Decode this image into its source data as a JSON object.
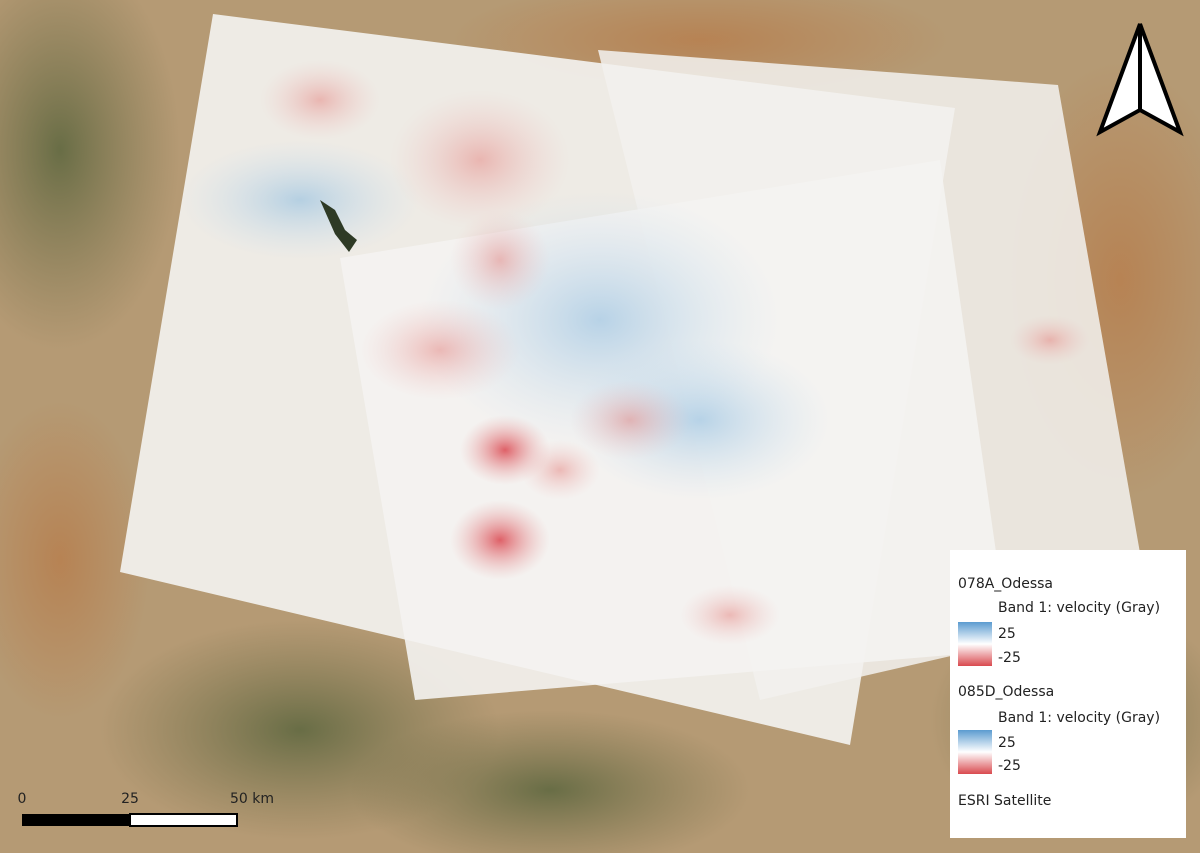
{
  "legend": {
    "layers": [
      {
        "name": "078A_Odessa",
        "band": "Band 1: velocity (Gray)",
        "max": "25",
        "min": "-25"
      },
      {
        "name": "085D_Odessa",
        "band": "Band 1: velocity (Gray)",
        "max": "25",
        "min": "-25"
      }
    ],
    "basemap": "ESRI Satellite"
  },
  "scale_bar": {
    "labels": [
      "0",
      "25",
      "50 km"
    ]
  }
}
